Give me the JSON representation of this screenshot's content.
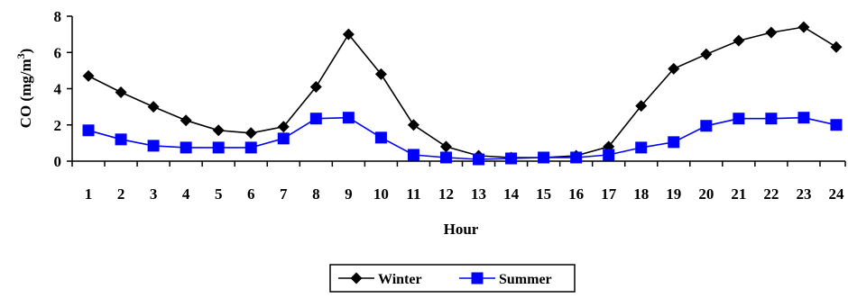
{
  "chart_data": {
    "type": "line",
    "xlabel": "Hour",
    "ylabel": "CO (mg/m",
    "ylabel_sup": "3",
    "ylabel_close": ")",
    "x": [
      "1",
      "2",
      "3",
      "4",
      "5",
      "6",
      "7",
      "8",
      "9",
      "10",
      "11",
      "12",
      "13",
      "14",
      "15",
      "16",
      "17",
      "18",
      "19",
      "20",
      "21",
      "22",
      "23",
      "24"
    ],
    "ylim": [
      0,
      8
    ],
    "yticks": [
      "0",
      "2",
      "4",
      "6",
      "8"
    ],
    "grid": false,
    "legend_position": "bottom-center",
    "series": [
      {
        "name": "Winter",
        "color": "#000000",
        "marker": "diamond",
        "values": [
          4.7,
          3.8,
          3.0,
          2.25,
          1.7,
          1.55,
          1.9,
          4.1,
          7.0,
          4.8,
          2.0,
          0.8,
          0.3,
          0.2,
          0.2,
          0.3,
          0.8,
          3.05,
          5.1,
          5.9,
          6.65,
          7.1,
          7.4,
          6.3
        ]
      },
      {
        "name": "Summer",
        "color": "#0000ff",
        "marker": "square",
        "values": [
          1.7,
          1.2,
          0.85,
          0.75,
          0.75,
          0.75,
          1.25,
          2.35,
          2.4,
          1.3,
          0.35,
          0.2,
          0.1,
          0.15,
          0.2,
          0.2,
          0.35,
          0.75,
          1.05,
          1.95,
          2.35,
          2.35,
          2.4,
          2.0
        ]
      }
    ]
  }
}
